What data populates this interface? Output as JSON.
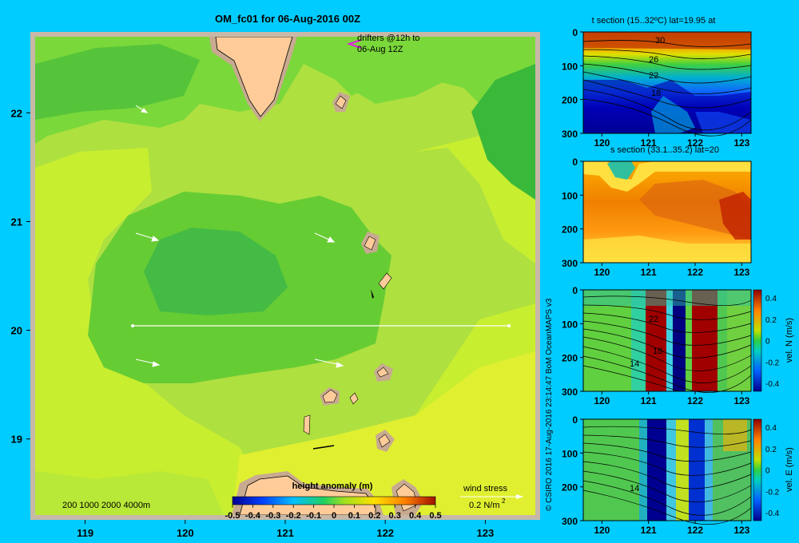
{
  "main_map": {
    "title": "OM_fc01 for 06-Aug-2016 00Z",
    "x_ticks": [
      "119",
      "120",
      "121",
      "122",
      "123"
    ],
    "y_ticks": [
      "22",
      "21",
      "20",
      "19"
    ],
    "drifter_note_line1": "drifters @12h to",
    "drifter_note_line2": "06-Aug 12Z",
    "depth_legend": "200  1000  2000  4000m",
    "wind_label": "wind stress",
    "wind_scale": "0.2 N/m",
    "wind_scale_exp": "2",
    "colorbar_title": "height anomaly  (m)",
    "colorbar_ticks": [
      "-0.5",
      "-0.4",
      "-0.3",
      "-0.2",
      "-0.1",
      "0",
      "0.1",
      "0.2",
      "0.3",
      "0.4",
      "0.5"
    ],
    "colors": {
      "frame": "#c8b8a8",
      "land": "#ffcc99",
      "shelf": "#c8aa90"
    }
  },
  "credit": "© CSIRO 2016   17-Aug-2016 23:14:47 BoM OceanMAPS v3",
  "chart_data": [
    {
      "type": "heatmap",
      "title": "OM_fc01 for 06-Aug-2016 00Z",
      "xlim": [
        118.5,
        123.5
      ],
      "ylim": [
        18.3,
        22.7
      ],
      "x_ticks": [
        119,
        120,
        121,
        122,
        123
      ],
      "y_ticks": [
        19,
        20,
        21,
        22
      ],
      "colorbar": {
        "label": "height anomaly  (m)",
        "range": [
          -0.5,
          0.5
        ],
        "ticks": [
          -0.5,
          -0.4,
          -0.3,
          -0.2,
          -0.1,
          0,
          0.1,
          0.2,
          0.3,
          0.4,
          0.5
        ]
      },
      "section_line": {
        "lat": 20,
        "lon": [
          119.5,
          123.2
        ]
      }
    },
    {
      "type": "heatmap",
      "title": "t section (15..32ºC) lat=19.95 at",
      "x_ticks": [
        120,
        121,
        122,
        123
      ],
      "y_ticks": [
        0,
        100,
        200,
        300
      ],
      "contour_labels": [
        "30",
        "26",
        "22",
        "18"
      ]
    },
    {
      "type": "heatmap",
      "title": "s section (33.1..35.2) lat=20",
      "x_ticks": [
        120,
        121,
        122,
        123
      ],
      "y_ticks": [
        0,
        100,
        200,
        300
      ]
    },
    {
      "type": "heatmap",
      "title": "",
      "colorbar_label": "vel. N (m/s)",
      "colorbar_ticks": [
        "0.4",
        "0.2",
        "0",
        "-0.2",
        "-0.4"
      ],
      "x_ticks": [
        120,
        121,
        122,
        123
      ],
      "y_ticks": [
        0,
        100,
        200,
        300
      ],
      "contour_labels": [
        "22",
        "18",
        "14"
      ]
    },
    {
      "type": "heatmap",
      "title": "",
      "colorbar_label": "vel. E (m/s)",
      "colorbar_ticks": [
        "0.4",
        "0.2",
        "0",
        "-0.2",
        "-0.4"
      ],
      "x_ticks": [
        120,
        121,
        122,
        123
      ],
      "y_ticks": [
        0,
        100,
        200,
        300
      ],
      "contour_labels": [
        "14"
      ]
    }
  ],
  "panels": [
    {
      "title": "t section (15..32ºC) lat=19.95 at"
    },
    {
      "title": "s section (33.1..35.2) lat=20"
    },
    {
      "cb_label": "vel. N (m/s)"
    },
    {
      "cb_label": "vel. E (m/s)"
    }
  ]
}
